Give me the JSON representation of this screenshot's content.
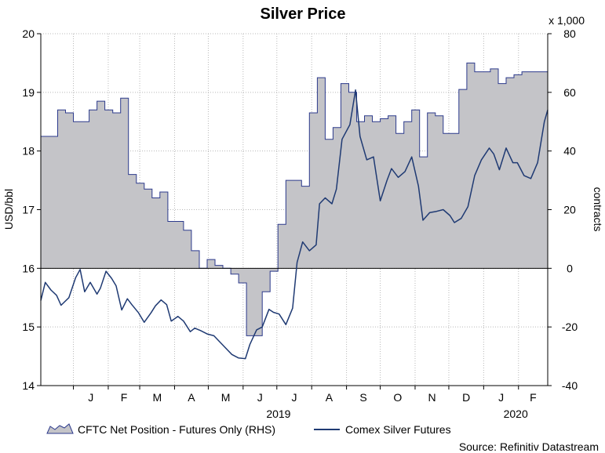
{
  "chart_data": {
    "type": "line",
    "title": "Silver Price",
    "ylabel": "USD/bbl",
    "y2label": "contracts",
    "y2_multiplier": "x 1,000",
    "source": "Source: Refinitiv Datastream",
    "ylim": [
      14,
      20
    ],
    "y2lim": [
      -40,
      80
    ],
    "y_ticks": [
      "14",
      "15",
      "16",
      "17",
      "18",
      "19",
      "20"
    ],
    "y2_ticks": [
      "-40",
      "-20",
      "0",
      "20",
      "40",
      "60",
      "80"
    ],
    "x_range": [
      "2018-12-03",
      "2020-02-27"
    ],
    "months": [
      "J",
      "F",
      "M",
      "A",
      "M",
      "J",
      "J",
      "A",
      "S",
      "O",
      "N",
      "D",
      "J",
      "F"
    ],
    "years": [
      "2019",
      "2020"
    ],
    "grid": true,
    "legend": "bottom",
    "colors": {
      "line": "#1f3a73",
      "area_fill": "#c4c4c8",
      "area_edge": "#2c3a8c"
    },
    "series": [
      {
        "name": "CFTC Net Position - Futures Only (RHS)",
        "kind": "area",
        "axis": "right",
        "x": [
          "2018-12-04",
          "2018-12-11",
          "2018-12-18",
          "2018-12-25",
          "2019-01-01",
          "2019-01-08",
          "2019-01-15",
          "2019-01-22",
          "2019-01-29",
          "2019-02-05",
          "2019-02-12",
          "2019-02-19",
          "2019-02-26",
          "2019-03-05",
          "2019-03-12",
          "2019-03-19",
          "2019-03-26",
          "2019-04-02",
          "2019-04-09",
          "2019-04-16",
          "2019-04-23",
          "2019-04-30",
          "2019-05-07",
          "2019-05-14",
          "2019-05-21",
          "2019-05-28",
          "2019-06-04",
          "2019-06-11",
          "2019-06-18",
          "2019-06-25",
          "2019-07-02",
          "2019-07-09",
          "2019-07-16",
          "2019-07-23",
          "2019-07-30",
          "2019-08-06",
          "2019-08-13",
          "2019-08-20",
          "2019-08-27",
          "2019-09-03",
          "2019-09-10",
          "2019-09-17",
          "2019-09-24",
          "2019-10-01",
          "2019-10-08",
          "2019-10-15",
          "2019-10-22",
          "2019-10-29",
          "2019-11-05",
          "2019-11-12",
          "2019-11-19",
          "2019-11-26",
          "2019-12-03",
          "2019-12-10",
          "2019-12-17",
          "2019-12-24",
          "2019-12-31",
          "2020-01-07",
          "2020-01-14",
          "2020-01-21",
          "2020-01-28",
          "2020-02-04",
          "2020-02-11",
          "2020-02-18",
          "2020-02-25"
        ],
        "values": [
          45,
          45,
          54,
          53,
          50,
          50,
          54,
          57,
          54,
          53,
          58,
          32,
          29,
          27,
          24,
          26,
          16,
          16,
          13,
          6,
          0,
          3,
          1,
          0,
          -2,
          -5,
          -23,
          -23,
          -8,
          -1,
          15,
          30,
          30,
          28,
          53,
          65,
          44,
          48,
          63,
          60,
          50,
          52,
          50,
          51,
          52,
          46,
          50,
          54,
          38,
          53,
          52,
          46,
          46,
          61,
          70,
          67,
          67,
          68,
          63,
          65,
          66,
          67,
          67,
          67,
          67
        ]
      },
      {
        "name": "Comex Silver Futures",
        "kind": "line",
        "axis": "left",
        "x": [
          "2018-12-03",
          "2018-12-07",
          "2018-12-12",
          "2018-12-17",
          "2018-12-21",
          "2018-12-28",
          "2019-01-03",
          "2019-01-07",
          "2019-01-11",
          "2019-01-16",
          "2019-01-22",
          "2019-01-25",
          "2019-01-30",
          "2019-02-04",
          "2019-02-08",
          "2019-02-13",
          "2019-02-18",
          "2019-02-22",
          "2019-02-28",
          "2019-03-05",
          "2019-03-11",
          "2019-03-15",
          "2019-03-20",
          "2019-03-25",
          "2019-03-29",
          "2019-04-04",
          "2019-04-09",
          "2019-04-15",
          "2019-04-19",
          "2019-04-24",
          "2019-04-30",
          "2019-05-06",
          "2019-05-10",
          "2019-05-16",
          "2019-05-22",
          "2019-05-28",
          "2019-06-03",
          "2019-06-07",
          "2019-06-13",
          "2019-06-18",
          "2019-06-24",
          "2019-06-28",
          "2019-07-03",
          "2019-07-09",
          "2019-07-15",
          "2019-07-19",
          "2019-07-24",
          "2019-07-30",
          "2019-08-05",
          "2019-08-08",
          "2019-08-13",
          "2019-08-19",
          "2019-08-23",
          "2019-08-28",
          "2019-09-04",
          "2019-09-09",
          "2019-09-13",
          "2019-09-19",
          "2019-09-25",
          "2019-10-01",
          "2019-10-07",
          "2019-10-11",
          "2019-10-17",
          "2019-10-23",
          "2019-10-29",
          "2019-11-04",
          "2019-11-08",
          "2019-11-14",
          "2019-11-20",
          "2019-11-26",
          "2019-12-02",
          "2019-12-06",
          "2019-12-12",
          "2019-12-18",
          "2019-12-24",
          "2019-12-30",
          "2020-01-06",
          "2020-01-10",
          "2020-01-15",
          "2020-01-21",
          "2020-01-27",
          "2020-01-31",
          "2020-02-06",
          "2020-02-12",
          "2020-02-18",
          "2020-02-24",
          "2020-02-27"
        ],
        "values": [
          15.45,
          15.76,
          15.63,
          15.54,
          15.37,
          15.5,
          15.84,
          15.98,
          15.6,
          15.76,
          15.56,
          15.66,
          15.95,
          15.83,
          15.7,
          15.29,
          15.48,
          15.38,
          15.24,
          15.08,
          15.24,
          15.36,
          15.46,
          15.38,
          15.1,
          15.18,
          15.1,
          14.92,
          14.98,
          14.94,
          14.88,
          14.85,
          14.77,
          14.65,
          14.53,
          14.47,
          14.46,
          14.7,
          14.95,
          15.0,
          15.3,
          15.25,
          15.22,
          15.04,
          15.32,
          16.1,
          16.45,
          16.3,
          16.4,
          17.1,
          17.2,
          17.1,
          17.35,
          18.2,
          18.45,
          19.04,
          18.25,
          17.85,
          17.9,
          17.15,
          17.5,
          17.7,
          17.55,
          17.65,
          17.9,
          17.4,
          16.82,
          16.95,
          16.97,
          17.0,
          16.9,
          16.78,
          16.85,
          17.05,
          17.58,
          17.85,
          18.05,
          17.95,
          17.68,
          18.05,
          17.8,
          17.8,
          17.58,
          17.53,
          17.8,
          18.5,
          18.7
        ]
      }
    ]
  }
}
